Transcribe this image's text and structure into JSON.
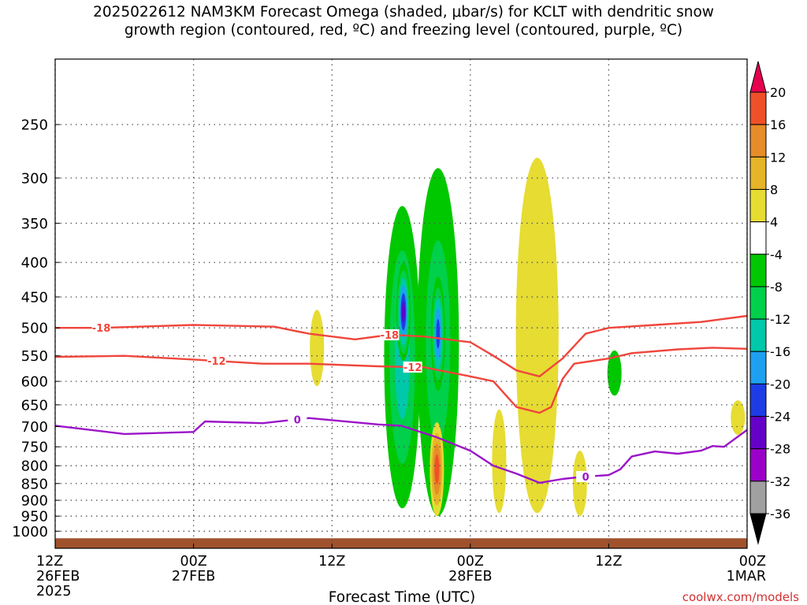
{
  "title_line1": "2025022612 NAM3KM Forecast Omega (shaded, μbar/s) for KCLT with dendritic snow",
  "title_line2": "growth region (contoured, red, ºC) and freezing level (contoured, purple, ºC)",
  "credit": "coolwx.com/models",
  "colors": {
    "omega_bins": [
      "#000000",
      "#a0a0a0",
      "#9a00c8",
      "#6400c8",
      "#1e3ce6",
      "#1ea0f0",
      "#00c8aa",
      "#00d04a",
      "#00c800",
      "#ffffff",
      "#e6dc32",
      "#e6b428",
      "#e68c28",
      "#f05028",
      "#e60050"
    ],
    "isotherm_dgz": "#f0463c",
    "isotherm_freezing": "#9b14c8",
    "ground": "#a0522d"
  },
  "chart_data": {
    "type": "time-height cross section (filled contour)",
    "xlabel": "Forecast Time (UTC)",
    "yaxis": {
      "scale": "log-pressure",
      "units": "hPa",
      "range": [
        1000,
        200
      ],
      "ticks": [
        250,
        300,
        350,
        400,
        450,
        500,
        550,
        600,
        650,
        700,
        750,
        800,
        850,
        900,
        950,
        1000
      ]
    },
    "xaxis": {
      "range_hours": [
        0,
        60
      ],
      "ticks": [
        {
          "hour": 0,
          "label": "12Z",
          "date": "26FEB",
          "year": "2025"
        },
        {
          "hour": 12,
          "label": "00Z",
          "date": "27FEB",
          "year": ""
        },
        {
          "hour": 24,
          "label": "12Z",
          "date": "",
          "year": ""
        },
        {
          "hour": 36,
          "label": "00Z",
          "date": "28FEB",
          "year": ""
        },
        {
          "hour": 48,
          "label": "12Z",
          "date": "",
          "year": ""
        },
        {
          "hour": 60,
          "label": "00Z",
          "date": "1MAR",
          "year": ""
        }
      ]
    },
    "colorbar": {
      "labels": [
        "20",
        "16",
        "12",
        "8",
        "4",
        "-4",
        "-8",
        "-12",
        "-16",
        "-20",
        "-24",
        "-28",
        "-32",
        "-36"
      ]
    },
    "isotherms": [
      {
        "name": "-18",
        "points": [
          [
            0,
            500
          ],
          [
            4,
            500
          ],
          [
            12,
            495
          ],
          [
            19,
            498
          ],
          [
            22,
            510
          ],
          [
            26,
            520
          ],
          [
            29,
            512
          ],
          [
            32,
            515
          ],
          [
            36,
            525
          ],
          [
            38,
            550
          ],
          [
            40,
            578
          ],
          [
            42,
            590
          ],
          [
            44,
            555
          ],
          [
            46,
            510
          ],
          [
            48,
            500
          ],
          [
            52,
            495
          ],
          [
            56,
            490
          ],
          [
            60,
            480
          ]
        ]
      },
      {
        "name": "-12",
        "points": [
          [
            0,
            552
          ],
          [
            6,
            550
          ],
          [
            12,
            557
          ],
          [
            18,
            565
          ],
          [
            22,
            565
          ],
          [
            28,
            570
          ],
          [
            32,
            572
          ],
          [
            36,
            590
          ],
          [
            38,
            600
          ],
          [
            40,
            655
          ],
          [
            42,
            668
          ],
          [
            43,
            655
          ],
          [
            44,
            595
          ],
          [
            45,
            565
          ],
          [
            48,
            555
          ],
          [
            50,
            545
          ],
          [
            54,
            538
          ],
          [
            57,
            535
          ],
          [
            60,
            537
          ]
        ]
      },
      {
        "name": "0",
        "points": [
          [
            0,
            698
          ],
          [
            6,
            718
          ],
          [
            12,
            713
          ],
          [
            13,
            688
          ],
          [
            18,
            692
          ],
          [
            22,
            680
          ],
          [
            28,
            695
          ],
          [
            30,
            698
          ],
          [
            33,
            725
          ],
          [
            36,
            760
          ],
          [
            38,
            800
          ],
          [
            40,
            822
          ],
          [
            42,
            848
          ],
          [
            44,
            837
          ],
          [
            46,
            830
          ],
          [
            48,
            826
          ],
          [
            49,
            810
          ],
          [
            50,
            775
          ],
          [
            52,
            762
          ],
          [
            54,
            768
          ],
          [
            56,
            760
          ],
          [
            57,
            748
          ],
          [
            58,
            750
          ],
          [
            60,
            708
          ]
        ]
      }
    ],
    "omega_features": [
      {
        "hour": 30.1,
        "p_top": 330,
        "p_bot": 925,
        "value": -14
      },
      {
        "hour": 30.2,
        "p_top": 400,
        "p_bot": 560,
        "value": -26
      },
      {
        "hour": 33.2,
        "p_top": 290,
        "p_bot": 950,
        "value": -12
      },
      {
        "hour": 33.2,
        "p_top": 420,
        "p_bot": 620,
        "value": -22
      },
      {
        "hour": 33.1,
        "p_top": 690,
        "p_bot": 950,
        "value": 18
      },
      {
        "hour": 41.8,
        "p_top": 280,
        "p_bot": 940,
        "value": 6
      },
      {
        "hour": 41.8,
        "p_top": 350,
        "p_bot": 700,
        "value": 9
      },
      {
        "hour": 38.5,
        "p_top": 660,
        "p_bot": 940,
        "value": 5
      },
      {
        "hour": 45.5,
        "p_top": 760,
        "p_bot": 950,
        "value": 5
      },
      {
        "hour": 48.5,
        "p_top": 540,
        "p_bot": 630,
        "value": -6
      },
      {
        "hour": 22.7,
        "p_top": 470,
        "p_bot": 610,
        "value": 5
      },
      {
        "hour": 59.2,
        "p_top": 640,
        "p_bot": 720,
        "value": 5
      }
    ]
  }
}
